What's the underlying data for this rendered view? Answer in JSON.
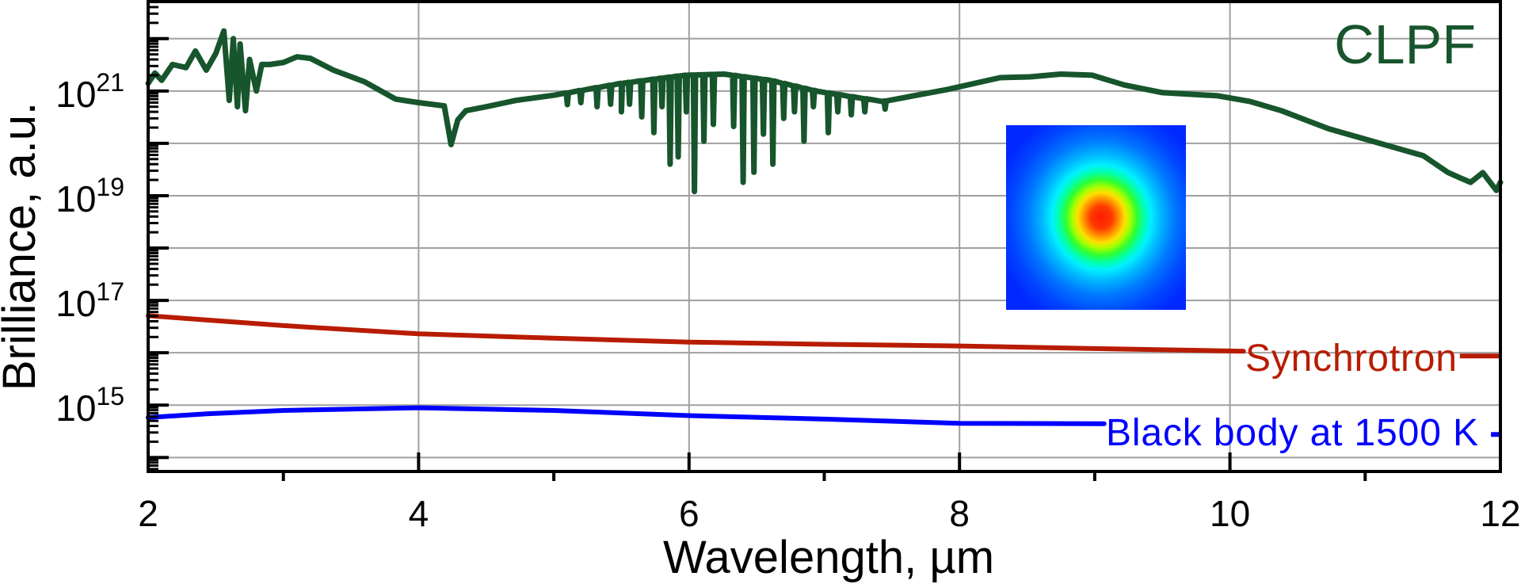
{
  "chart_data": {
    "type": "line",
    "title": "CLPF",
    "xlabel": "Wavelength, µm",
    "ylabel": "Brilliance, a.u.",
    "xlim": [
      2,
      12
    ],
    "ylim": [
      54000000000000.0,
      5.1e+22
    ],
    "yscale": "log",
    "grid": true,
    "x_ticks": [
      "2",
      "4",
      "6",
      "8",
      "10",
      "12"
    ],
    "x_tick_values": [
      2,
      4,
      6,
      8,
      10,
      12
    ],
    "y_ticks": [
      {
        "base": "10",
        "exp": "15",
        "value": 1000000000000000.0
      },
      {
        "base": "10",
        "exp": "17",
        "value": 1e+17
      },
      {
        "base": "10",
        "exp": "19",
        "value": 1e+19
      },
      {
        "base": "10",
        "exp": "21",
        "value": 1e+21
      }
    ],
    "series": [
      {
        "name": "CLPF",
        "color": "#17552c",
        "points": [
          [
            2.0,
            1.4e+21
          ],
          [
            2.05,
            2.2e+21
          ],
          [
            2.1,
            1.6e+21
          ],
          [
            2.18,
            3.2e+21
          ],
          [
            2.28,
            2.8e+21
          ],
          [
            2.35,
            5.8e+21
          ],
          [
            2.43,
            2.5e+21
          ],
          [
            2.5,
            5.2e+21
          ],
          [
            2.56,
            1.4e+22
          ],
          [
            2.6,
            6.6e+20
          ],
          [
            2.63,
            1e+22
          ],
          [
            2.66,
            5e+20
          ],
          [
            2.68,
            7.9e+21
          ],
          [
            2.72,
            4.2e+20
          ],
          [
            2.75,
            4e+21
          ],
          [
            2.8,
            1e+21
          ],
          [
            2.84,
            3.2e+21
          ],
          [
            2.9,
            3.2e+21
          ],
          [
            3.0,
            3.5e+21
          ],
          [
            3.1,
            4.5e+21
          ],
          [
            3.2,
            4.2e+21
          ],
          [
            3.37,
            2.5e+21
          ],
          [
            3.6,
            1.5e+21
          ],
          [
            3.83,
            7e+20
          ],
          [
            4.0,
            6e+20
          ],
          [
            4.19,
            5.2e+20
          ],
          [
            4.24,
            9.5e+19
          ],
          [
            4.29,
            2.8e+20
          ],
          [
            4.35,
            4.2e+20
          ],
          [
            4.5,
            5e+20
          ],
          [
            4.72,
            6.6e+20
          ],
          [
            5.0,
            8.3e+20
          ],
          [
            5.5,
            1.4e+21
          ],
          [
            5.97,
            2e+21
          ],
          [
            6.26,
            2.1e+21
          ],
          [
            6.6,
            1.6e+21
          ],
          [
            6.94,
            1e+21
          ],
          [
            7.43,
            6.3e+20
          ],
          [
            7.91,
            1.07e+21
          ],
          [
            8.3,
            1.8e+21
          ],
          [
            8.52,
            1.86e+21
          ],
          [
            8.75,
            2.1e+21
          ],
          [
            8.98,
            2e+21
          ],
          [
            9.22,
            1.3e+21
          ],
          [
            9.5,
            9.3e+20
          ],
          [
            9.91,
            8.1e+20
          ],
          [
            10.15,
            6.3e+20
          ],
          [
            10.38,
            4.2e+20
          ],
          [
            10.73,
            1.9e+20
          ],
          [
            11.08,
            1.05e+20
          ],
          [
            11.43,
            5.8e+19
          ],
          [
            11.61,
            2.8e+19
          ],
          [
            11.7,
            2.2e+19
          ],
          [
            11.78,
            1.8e+19
          ],
          [
            11.87,
            2.75e+19
          ],
          [
            11.97,
            1.26e+19
          ],
          [
            12.0,
            1.8e+19
          ]
        ],
        "absorption_dips": [
          [
            5.1,
            5.5e+20
          ],
          [
            5.2,
            6e+20
          ],
          [
            5.32,
            5e+20
          ],
          [
            5.42,
            5.6e+20
          ],
          [
            5.5,
            4e+20
          ],
          [
            5.56,
            5.6e+20
          ],
          [
            5.65,
            3.2e+20
          ],
          [
            5.74,
            1.6e+20
          ],
          [
            5.8,
            5e+20
          ],
          [
            5.86,
            4e+19
          ],
          [
            5.92,
            5.5e+19
          ],
          [
            5.98,
            4e+20
          ],
          [
            6.04,
            1.2e+19
          ],
          [
            6.11,
            1.1e+20
          ],
          [
            6.18,
            2.3e+20
          ],
          [
            6.33,
            2.1e+20
          ],
          [
            6.4,
            1.8e+19
          ],
          [
            6.48,
            2.8e+19
          ],
          [
            6.55,
            1.5e+20
          ],
          [
            6.62,
            4e+19
          ],
          [
            6.7,
            3e+20
          ],
          [
            6.78,
            4e+20
          ],
          [
            6.85,
            1.1e+20
          ],
          [
            6.92,
            5e+20
          ],
          [
            7.03,
            1.6e+20
          ],
          [
            7.1,
            4e+20
          ],
          [
            7.2,
            3.5e+20
          ],
          [
            7.3,
            4e+20
          ],
          [
            7.45,
            4.5e+20
          ]
        ]
      },
      {
        "name": "Synchrotron",
        "color": "#b81c00",
        "points": [
          [
            2.0,
            5.1e+16
          ],
          [
            3.0,
            3.3e+16
          ],
          [
            4.0,
            2.3e+16
          ],
          [
            5.0,
            1.9e+16
          ],
          [
            6.0,
            1.6e+16
          ],
          [
            7.0,
            1.45e+16
          ],
          [
            8.0,
            1.35e+16
          ],
          [
            9.0,
            1.2e+16
          ],
          [
            10.1,
            1.07e+16
          ]
        ],
        "stub_points": [
          [
            11.7,
            8700000000000000.0
          ],
          [
            12.0,
            8700000000000000.0
          ]
        ]
      },
      {
        "name": "Black body at 1500 K",
        "color": "#0000ff",
        "points": [
          [
            2.0,
            580000000000000.0
          ],
          [
            2.43,
            680000000000000.0
          ],
          [
            3.0,
            790000000000000.0
          ],
          [
            4.0,
            890000000000000.0
          ],
          [
            5.0,
            790000000000000.0
          ],
          [
            6.0,
            630000000000000.0
          ],
          [
            7.0,
            540000000000000.0
          ],
          [
            8.0,
            450000000000000.0
          ],
          [
            9.07,
            440000000000000.0
          ]
        ],
        "stub_points": [
          [
            11.93,
            275000000000000.0
          ],
          [
            12.0,
            275000000000000.0
          ]
        ]
      }
    ],
    "annotations": [
      "CLPF",
      "Synchrotron",
      "Black body at 1500 K"
    ],
    "inset": "beam-profile-heatmap"
  }
}
